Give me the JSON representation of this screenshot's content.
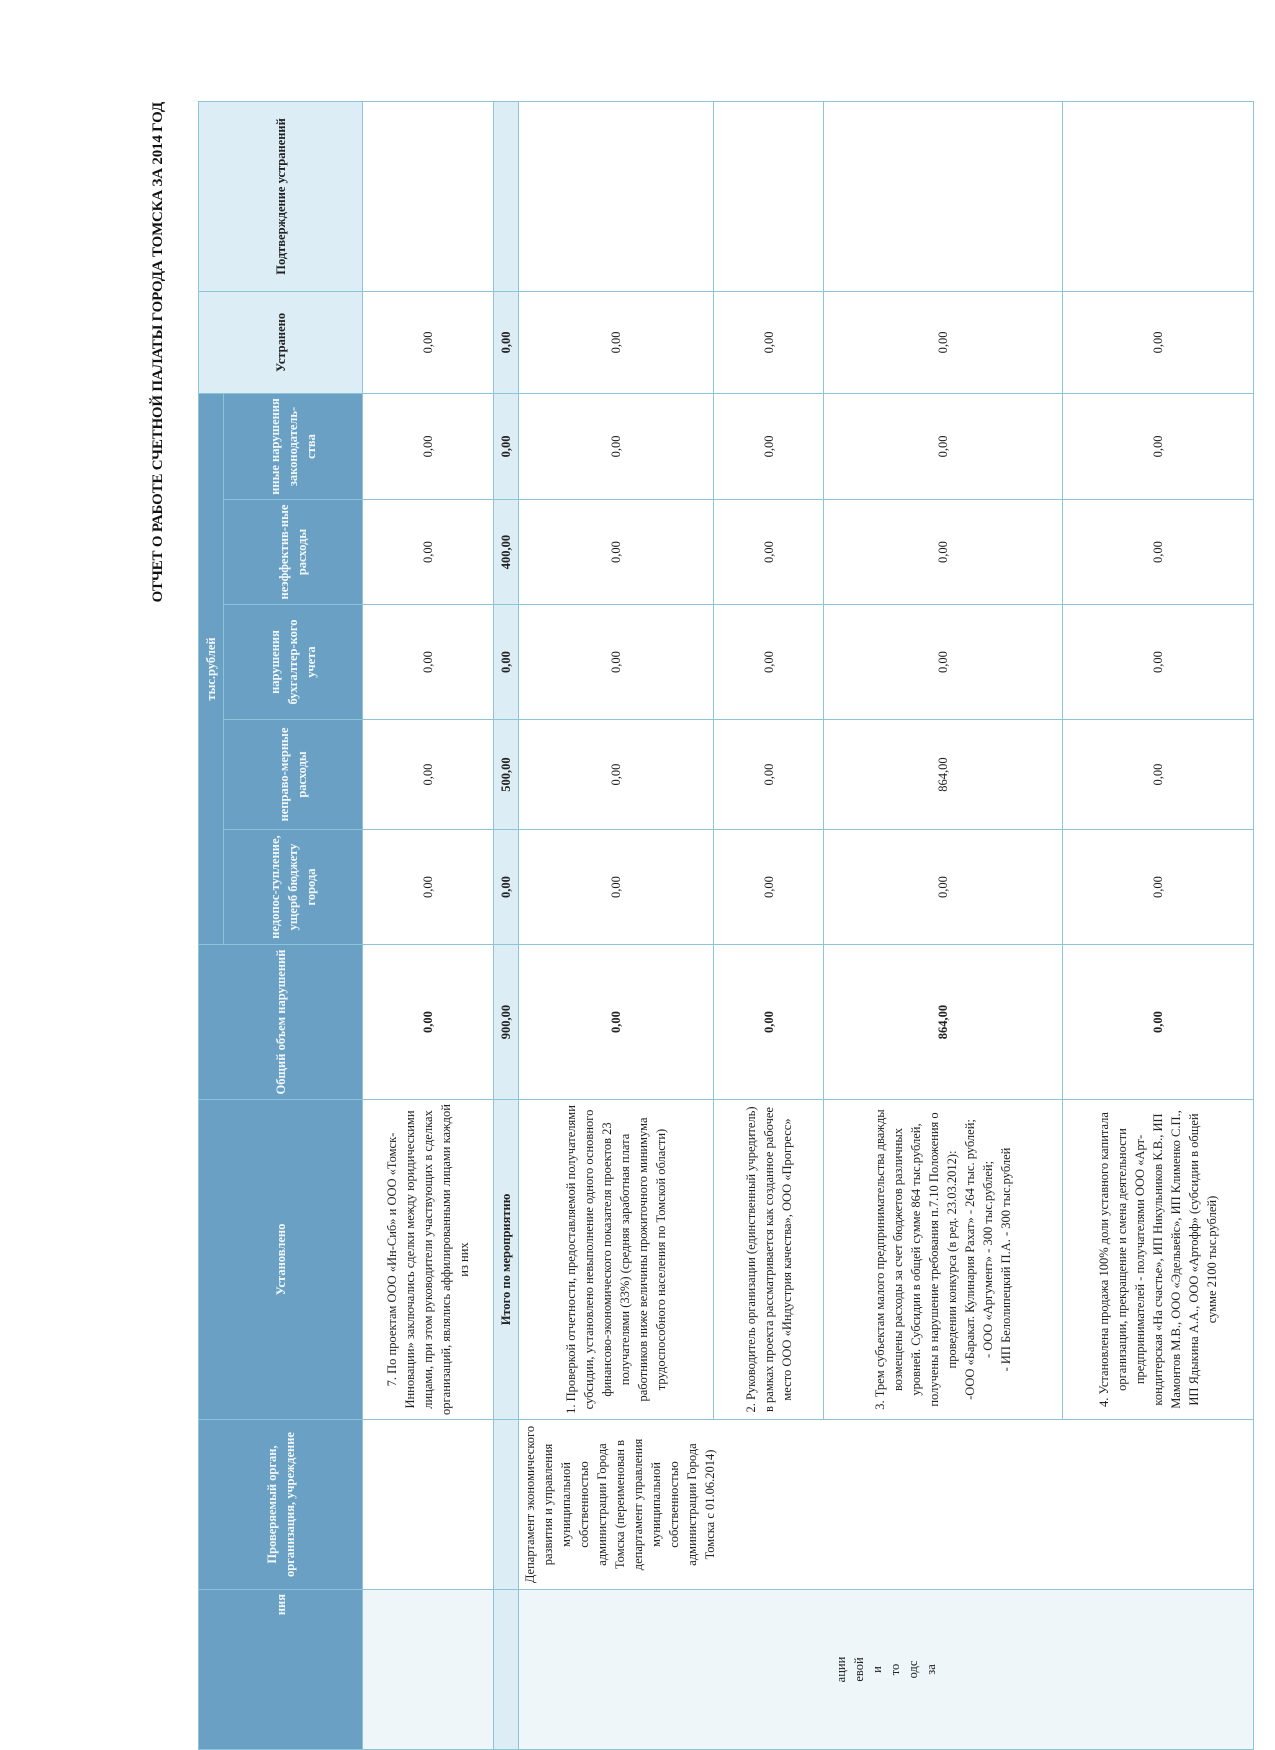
{
  "title": "ОТЧЕТ О РАБОТЕ СЧЕТНОЙ ПАЛАТЫ ГОРОДА ТОМСКА ЗА 2014 ГОД",
  "headers": {
    "col0": "ния",
    "org": "Проверяемый орган, организация, учреждение",
    "found": "Установлено",
    "total": "Общий объем нарушений",
    "unit": "тыс.рублей",
    "sub": [
      "недопос-тупление, ущерб бюджету города",
      "неправо-мерные расходы",
      "нарушения бухгалтер-кого учета",
      "неэффектив-ные расходы",
      "иные нарушения законодатель-ства"
    ],
    "fixed": "Устранено",
    "confirm": "Подтверждение устранений"
  },
  "col0_fragment": "ации\nевой\nи\nто\nодс\nза",
  "org_text": "Департамент экономического развития и управления муниципальной собственностью администрации Города Томска (переименован в департамент управления муниципальной собственностью администрации Города Томска с 01.06.2014)",
  "rows": [
    {
      "found": "7. По проектам ООО «Ин-Сиб» и ООО «Томск-Инновации» заключались сделки между юридическими лицами, при этом руководители участвующих в сделках организаций, являлись аффилированными лицами каждой из них",
      "values": [
        "0,00",
        "0,00",
        "0,00",
        "0,00",
        "0,00",
        "0,00",
        "0,00"
      ]
    },
    {
      "found": "Итого по мероприятию",
      "values": [
        "900,00",
        "0,00",
        "500,00",
        "0,00",
        "400,00",
        "0,00",
        "0,00"
      ]
    },
    {
      "found": "1. Проверкой отчетности, предоставляемой получателями субсидии, установлено невыполнение одного основного финансово-экономического показателя проектов 23 получателями (33%) (средняя заработная плата работников ниже величины прожиточного минимума трудоспособного населения по Томской области)",
      "values": [
        "0,00",
        "0,00",
        "0,00",
        "0,00",
        "0,00",
        "0,00",
        "0,00"
      ]
    },
    {
      "found": "2. Руководитель организации (единственный учредитель) в рамках проекта рассматривается как созданное рабочее место ООО «Индустрия качества», ООО «Прогресс»",
      "values": [
        "0,00",
        "0,00",
        "0,00",
        "0,00",
        "0,00",
        "0,00",
        "0,00"
      ]
    },
    {
      "found_lines": [
        "3. Трем субъектам малого предпринимательства дважды возмещены расходы за счет бюджетов различных уровней. Субсидии в общей сумме 864 тыс.рублей, получены в нарушение требования п.7.10 Положения о проведении конкурса (в ред. 23.03.2012):",
        "-ООО «Баракат. Кулинария Рахат» - 264 тыс. рублей;",
        "- ООО «Аргумент» - 300 тыс.рублей;",
        "- ИП Белолипецкий П.А. - 300 тыс.рублей"
      ],
      "values": [
        "864,00",
        "0,00",
        "864,00",
        "0,00",
        "0,00",
        "0,00",
        "0,00"
      ]
    },
    {
      "found": "4. Установлена продажа 100% доли уставного капитала организации, прекращение и смена деятельности предпринимателей - получателями ООО «Арт-кондитерская «На счастье», ИП Никульников К.В., ИП Мамонтов М.В., ООО «Эдельвейс», ИП Клименко С.П., ИП Ядыкина А.А., ООО «Артофф» (субсидии в общей сумме 2100 тыс.рублей)",
      "values": [
        "0,00",
        "0,00",
        "0,00",
        "0,00",
        "0,00",
        "0,00",
        "0,00"
      ]
    }
  ],
  "colors": {
    "header_dark": "#6aa0c4",
    "header_light": "#dcedf5",
    "border": "#8cc5d8"
  }
}
